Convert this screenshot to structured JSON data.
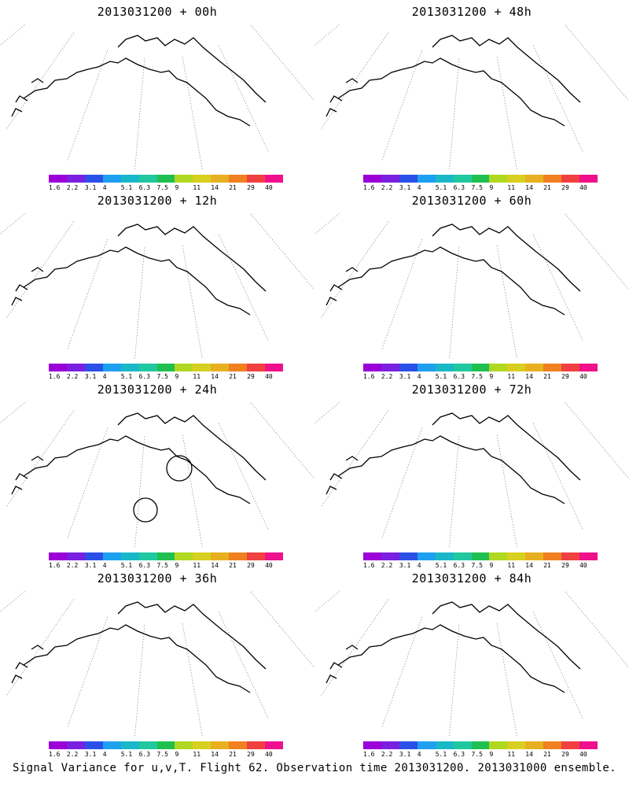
{
  "panels": [
    {
      "title": "2013031200 + 00h",
      "level": 0
    },
    {
      "title": "2013031200 + 48h",
      "level": 4
    },
    {
      "title": "2013031200 + 12h",
      "level": 1
    },
    {
      "title": "2013031200 + 60h",
      "level": 5
    },
    {
      "title": "2013031200 + 24h",
      "level": 2
    },
    {
      "title": "2013031200 + 72h",
      "level": 6
    },
    {
      "title": "2013031200 + 36h",
      "level": 3
    },
    {
      "title": "2013031200 + 84h",
      "level": 7
    }
  ],
  "colorbar": {
    "colors": [
      "#9b00d8",
      "#7a20e0",
      "#2a50e8",
      "#1ea0f0",
      "#19b8c8",
      "#20c8a0",
      "#20c050",
      "#b0d820",
      "#d8d020",
      "#e8b020",
      "#f08020",
      "#f04040",
      "#f0108c"
    ],
    "labels": [
      "1.6",
      "2.2",
      "3.1",
      "4",
      "5.1",
      "6.3",
      "7.5",
      "9",
      "11",
      "14",
      "21",
      "29",
      "40"
    ]
  },
  "caption": "Signal Variance for u,v,T. Flight 62. Observation time 2013031200. 2013031000 ensemble."
}
